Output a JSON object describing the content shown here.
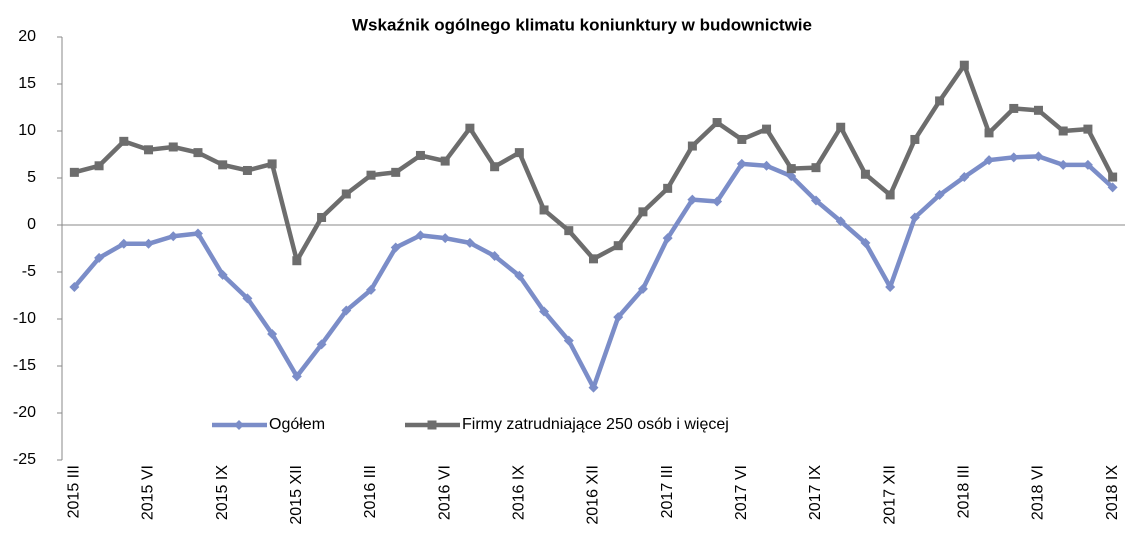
{
  "chart_data": {
    "type": "line",
    "title": "Wskaźnik ogólnego klimatu koniunktury w budownictwie",
    "categories": [
      "2015 III",
      null,
      null,
      "2015 VI",
      null,
      null,
      "2015 IX",
      null,
      null,
      "2015 XII",
      null,
      null,
      "2016 III",
      null,
      null,
      "2016 VI",
      null,
      null,
      "2016 IX",
      null,
      null,
      "2016 XII",
      null,
      null,
      "2017 III",
      null,
      null,
      "2017 VI",
      null,
      null,
      "2017 IX",
      null,
      null,
      "2017 XII",
      null,
      null,
      "2018 III",
      null,
      null,
      "2018 VI",
      null,
      null,
      "2018 IX"
    ],
    "series": [
      {
        "name": "Ogółem",
        "color": "#7b8dc8",
        "marker": "diamond",
        "values": [
          -6.6,
          -3.5,
          -2.0,
          -2.0,
          -1.2,
          -0.9,
          -5.3,
          -7.8,
          -11.6,
          -16.1,
          -12.7,
          -9.1,
          -6.9,
          -2.4,
          -1.1,
          -1.4,
          -1.9,
          -3.3,
          -5.4,
          -9.2,
          -12.3,
          -17.3,
          -9.8,
          -6.8,
          -1.4,
          2.7,
          2.5,
          6.5,
          6.3,
          5.2,
          2.6,
          0.4,
          -1.9,
          -6.6,
          0.8,
          3.2,
          5.1,
          6.9,
          7.2,
          7.3,
          6.4,
          6.4,
          4.0
        ]
      },
      {
        "name": "Firmy zatrudniające 250 osób i więcej",
        "color": "#6d6d6d",
        "marker": "square",
        "values": [
          5.6,
          6.3,
          8.9,
          8.0,
          8.3,
          7.7,
          6.4,
          5.8,
          6.5,
          -3.8,
          0.8,
          3.3,
          5.3,
          5.6,
          7.4,
          6.8,
          10.3,
          6.2,
          7.7,
          1.6,
          -0.6,
          -3.6,
          -2.2,
          1.4,
          3.9,
          8.4,
          10.9,
          9.1,
          10.2,
          6.0,
          6.1,
          10.4,
          5.4,
          3.2,
          9.1,
          13.2,
          17.0,
          9.8,
          12.4,
          12.2,
          10.0,
          10.2,
          5.1
        ]
      }
    ],
    "ylim": [
      -25,
      20
    ],
    "yticks": [
      -25,
      -20,
      -15,
      -10,
      -5,
      0,
      5,
      10,
      15,
      20
    ],
    "grid": false
  }
}
